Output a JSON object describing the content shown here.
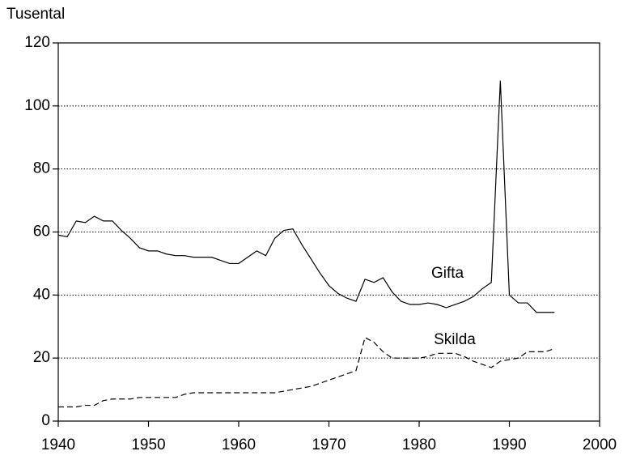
{
  "chart_data": {
    "type": "line",
    "y_label": "Tusental",
    "x": [
      1940,
      1941,
      1942,
      1943,
      1944,
      1945,
      1946,
      1947,
      1948,
      1949,
      1950,
      1951,
      1952,
      1953,
      1954,
      1955,
      1956,
      1957,
      1958,
      1959,
      1960,
      1961,
      1962,
      1963,
      1964,
      1965,
      1966,
      1967,
      1968,
      1969,
      1970,
      1971,
      1972,
      1973,
      1974,
      1975,
      1976,
      1977,
      1978,
      1979,
      1980,
      1981,
      1982,
      1983,
      1984,
      1985,
      1986,
      1987,
      1988,
      1989,
      1990,
      1991,
      1992,
      1993,
      1994,
      1995
    ],
    "series": [
      {
        "name": "Gifta",
        "color": "#000000",
        "dash": "solid",
        "values": [
          59,
          58.5,
          63.5,
          63,
          65,
          63.5,
          63.5,
          60.5,
          58,
          55,
          54,
          54,
          53,
          52.5,
          52.5,
          52,
          52,
          52,
          51,
          50,
          50,
          52,
          54,
          52.5,
          58,
          60.5,
          61,
          56,
          51.5,
          47,
          43,
          40.5,
          39,
          38,
          45,
          44,
          45.5,
          41,
          38,
          37,
          37,
          37.5,
          37,
          36,
          37,
          38,
          39.5,
          42,
          44,
          108,
          40,
          37.5,
          37.5,
          34.5,
          34.5,
          34.5
        ]
      },
      {
        "name": "Skilda",
        "color": "#000000",
        "dash": "dashed",
        "values": [
          4.5,
          4.5,
          4.5,
          5,
          5,
          6.5,
          7,
          7,
          7,
          7.5,
          7.5,
          7.5,
          7.5,
          7.5,
          8.5,
          9,
          9,
          9,
          9,
          9,
          9,
          9,
          9,
          9,
          9,
          9.5,
          10,
          10.5,
          11,
          12,
          13,
          14,
          15,
          16,
          26.5,
          25,
          22,
          20,
          20,
          20,
          20,
          20.5,
          21.5,
          21.5,
          21.5,
          20.5,
          19,
          18,
          17,
          19,
          19.5,
          20,
          22,
          22,
          22,
          23
        ]
      }
    ],
    "xlim": [
      1940,
      2000
    ],
    "xticks": [
      1940,
      1950,
      1960,
      1970,
      1980,
      1990,
      2000
    ],
    "ylim": [
      0,
      120
    ],
    "yticks": [
      0,
      20,
      40,
      60,
      80,
      100,
      120
    ],
    "grid": "dotted"
  }
}
